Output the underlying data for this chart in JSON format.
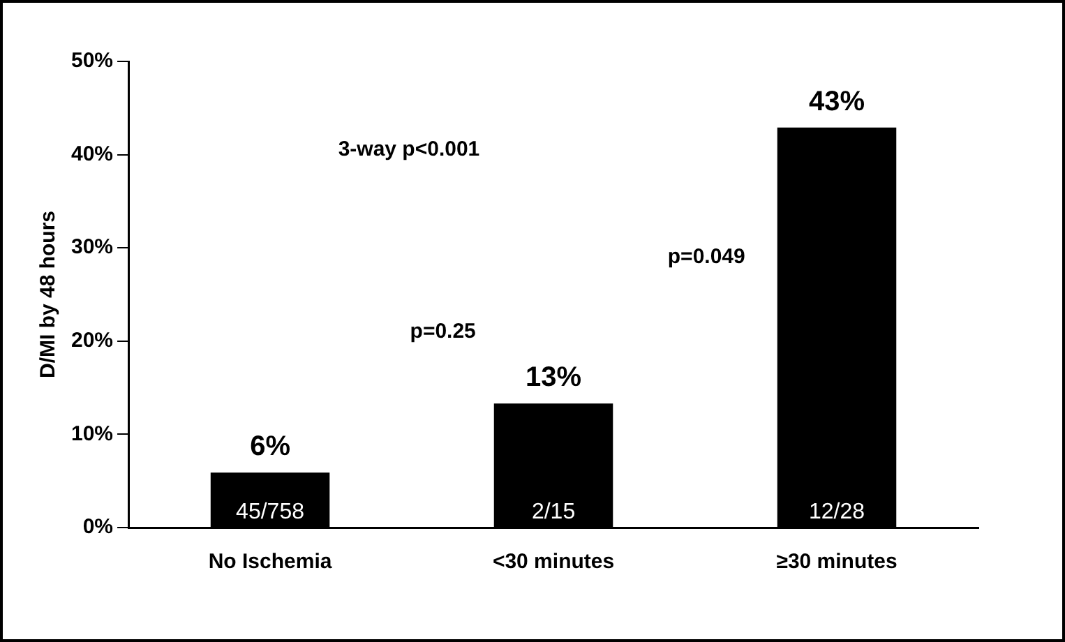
{
  "chart_data": {
    "type": "bar",
    "ylabel": "D/MI by 48 hours",
    "categories": [
      "No Ischemia",
      "<30 minutes",
      "≥30 minutes"
    ],
    "values": [
      5.9,
      13.3,
      42.9
    ],
    "color": "#000000",
    "value_labels": [
      "6%",
      "13%",
      "43%"
    ],
    "ylim": [
      0,
      50
    ],
    "yticks": [
      {
        "value": 0,
        "label": "0%"
      },
      {
        "value": 10,
        "label": "10%"
      },
      {
        "value": 20,
        "label": "20%"
      },
      {
        "value": 30,
        "label": "30%"
      },
      {
        "value": 40,
        "label": "40%"
      },
      {
        "value": 50,
        "label": "50%"
      }
    ],
    "grid": false,
    "legend": false,
    "annotations": [
      {
        "text": "45/758",
        "x": "No Ischemia",
        "y": 0
      },
      {
        "text": "2/15",
        "x": "<30 minutes",
        "y": 0
      },
      {
        "text": "12/28",
        "x": "≥30 minutes",
        "y": 0
      },
      "3-way p<0.001",
      "p=0.25",
      "p=0.049"
    ]
  }
}
